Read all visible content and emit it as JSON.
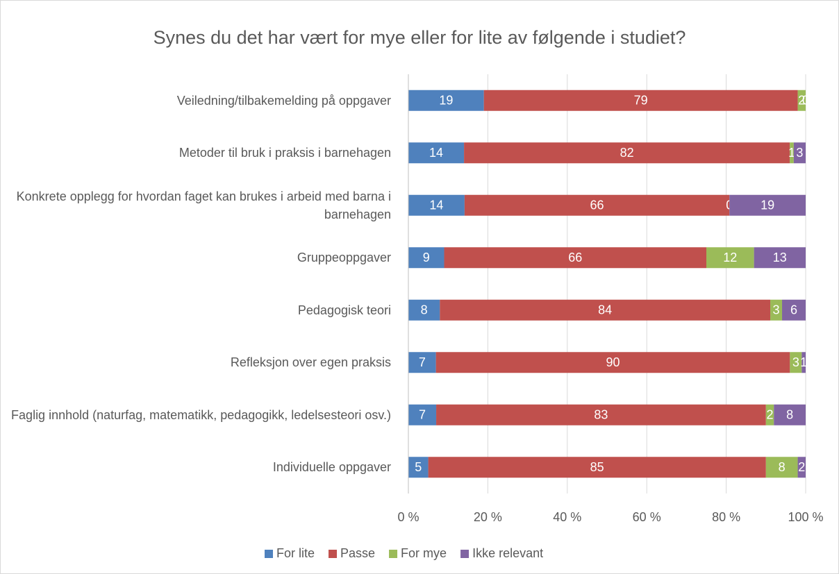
{
  "chart_data": {
    "type": "bar",
    "orientation": "horizontal",
    "stacked": "percent",
    "title": "Synes du det har vært for mye eller for lite av følgende i studiet?",
    "categories": [
      "Veiledning/tilbakemelding på oppgaver",
      "Metoder til bruk i praksis i barnehagen",
      "Konkrete opplegg for hvordan faget kan brukes i arbeid med barna i barnehagen",
      "Gruppeoppgaver",
      "Pedagogisk teori",
      "Refleksjon over egen praksis",
      "Faglig innhold  (naturfag, matematikk, pedagogikk, ledelsesteori osv.)",
      "Individuelle oppgaver"
    ],
    "series": [
      {
        "name": "For lite",
        "color": "#4f81bd",
        "values": [
          19,
          14,
          14,
          9,
          8,
          7,
          7,
          5
        ]
      },
      {
        "name": "Passe",
        "color": "#c0504d",
        "values": [
          79,
          82,
          66,
          66,
          84,
          90,
          83,
          85
        ]
      },
      {
        "name": "For mye",
        "color": "#9bbb59",
        "values": [
          2,
          1,
          0,
          12,
          3,
          3,
          2,
          8
        ]
      },
      {
        "name": "Ikke relevant",
        "color": "#8064a2",
        "values": [
          0,
          3,
          19,
          13,
          6,
          1,
          8,
          2
        ]
      }
    ],
    "xlim": [
      0,
      100
    ],
    "xticks": [
      {
        "value": 0,
        "label": "0 %"
      },
      {
        "value": 20,
        "label": "20 %"
      },
      {
        "value": 40,
        "label": "40 %"
      },
      {
        "value": 60,
        "label": "60 %"
      },
      {
        "value": 80,
        "label": "80 %"
      },
      {
        "value": 100,
        "label": "100 %"
      }
    ],
    "grid": true,
    "legend": "bottom"
  }
}
